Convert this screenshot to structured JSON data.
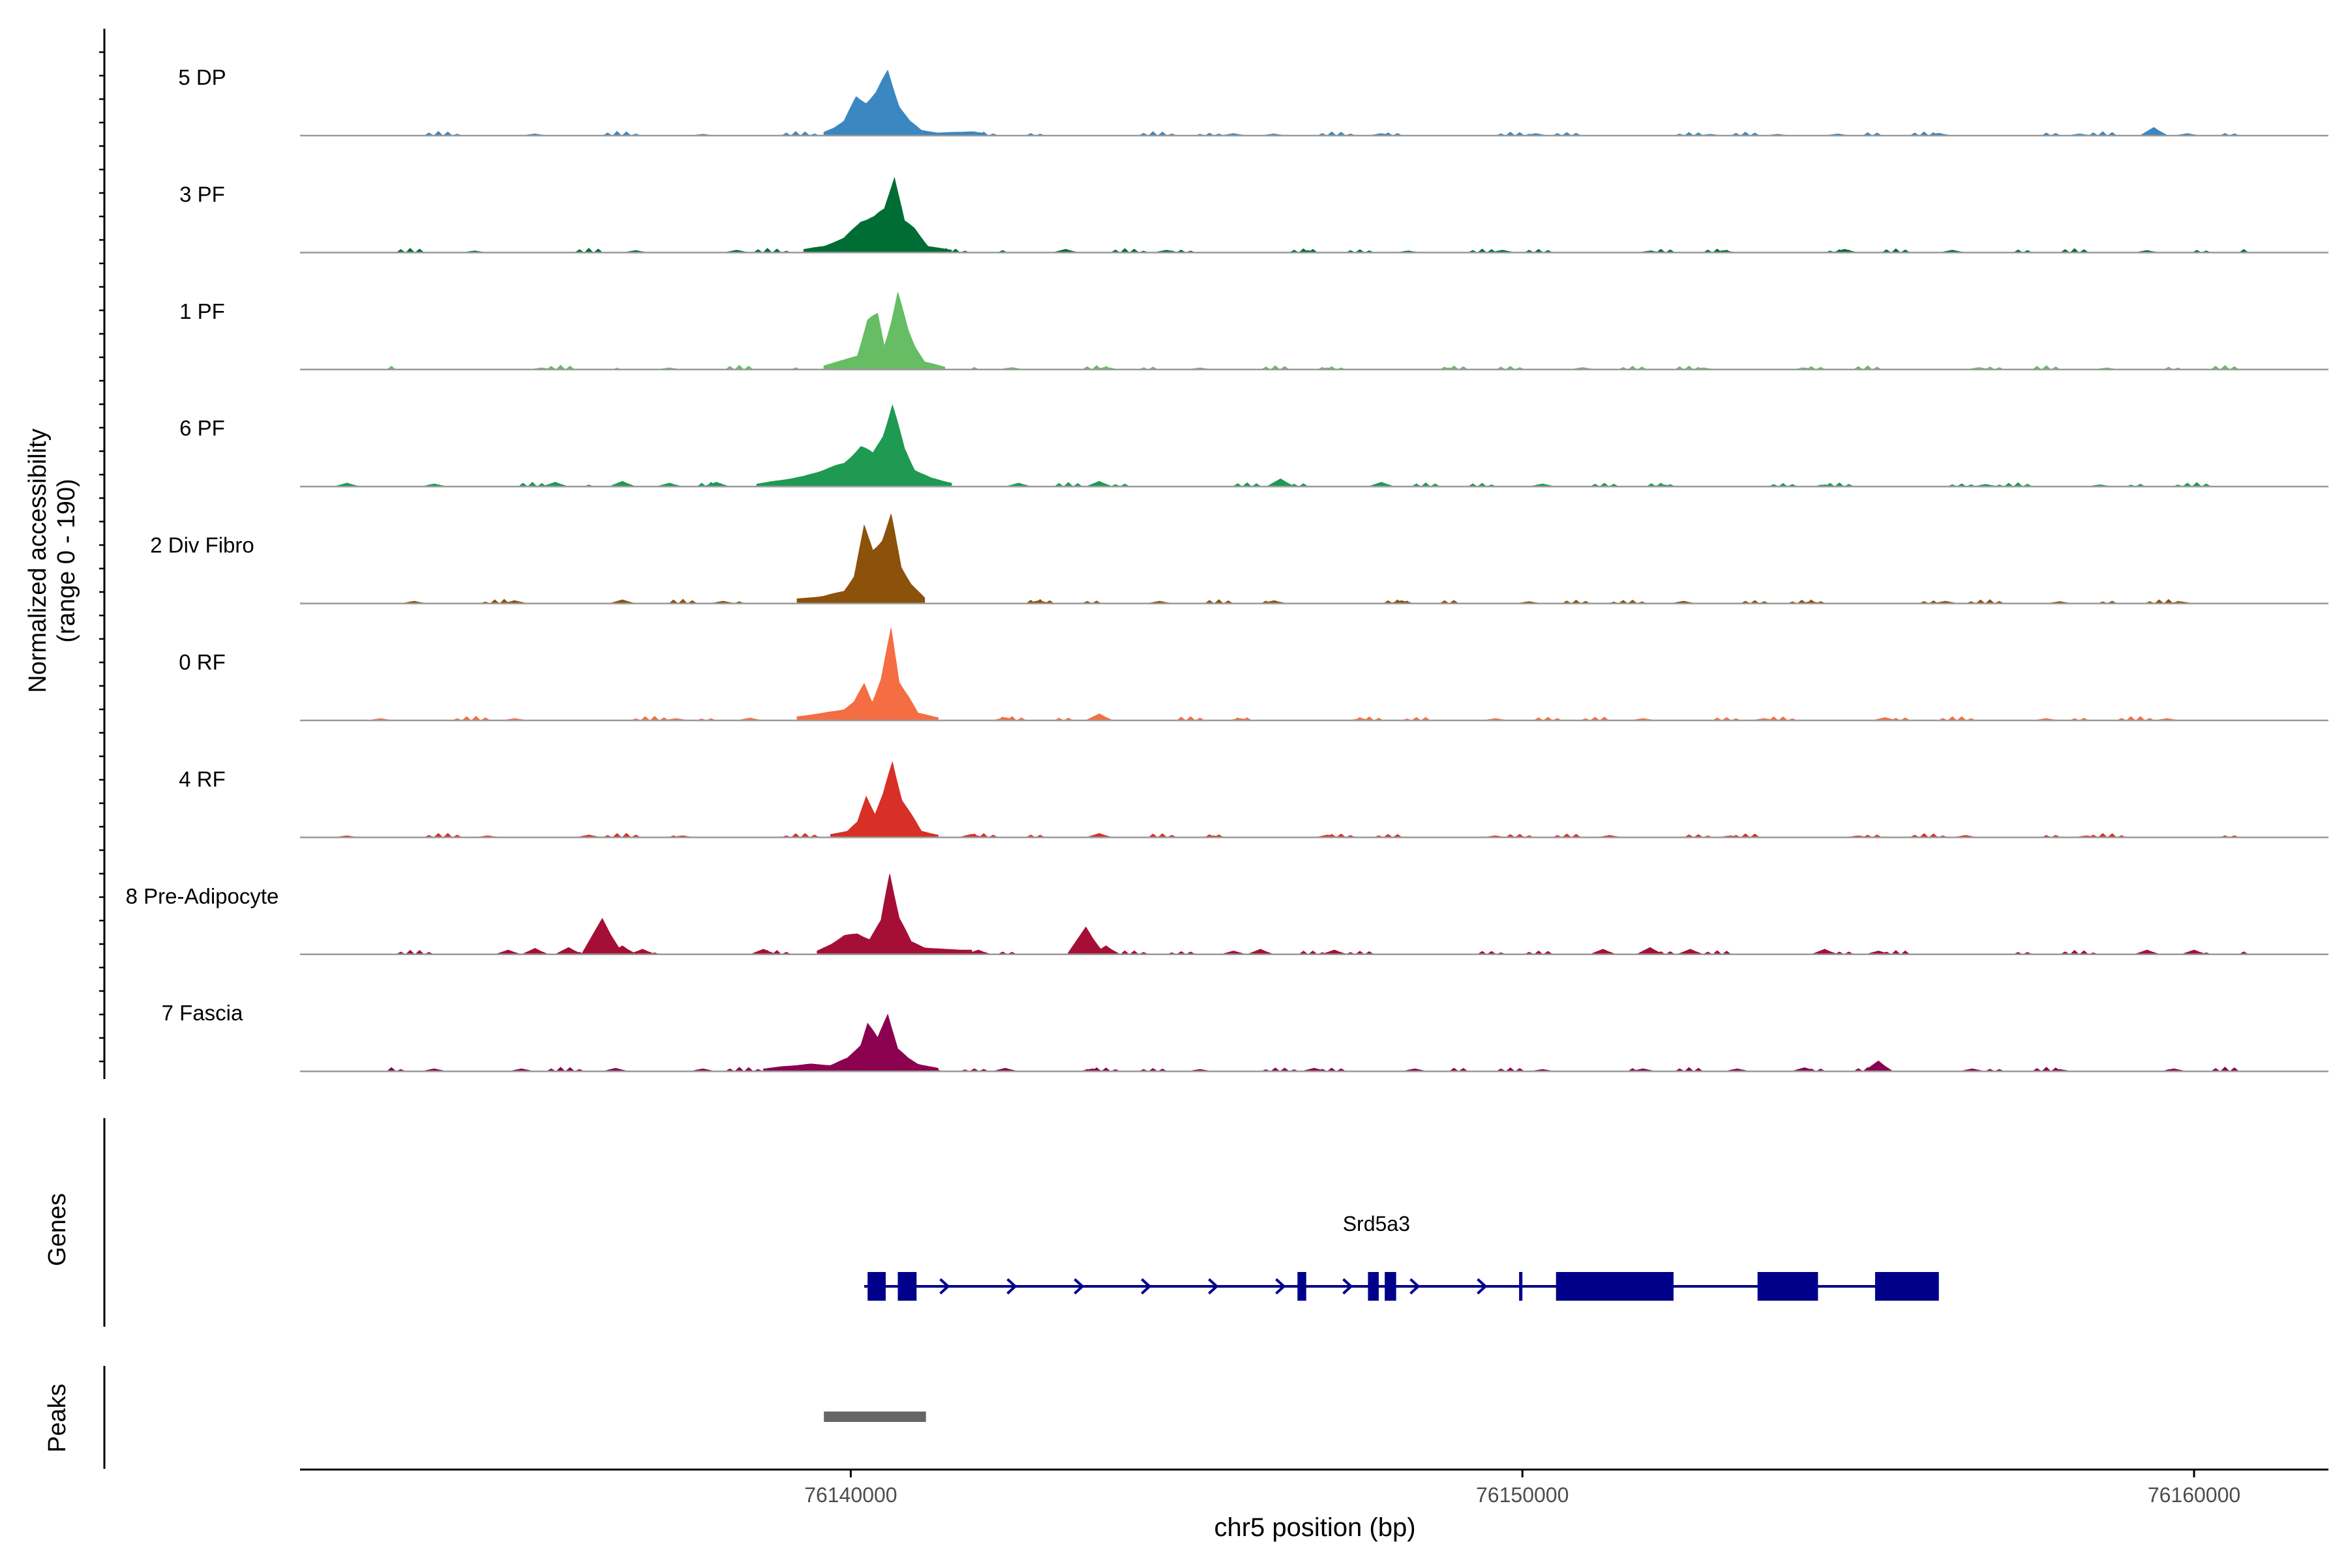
{
  "chart_data": {
    "type": "area",
    "region": {
      "chromosome": "chr5",
      "start": 76131800,
      "end": 76162000
    },
    "coverage_range": [
      0,
      190
    ],
    "y_axis_label": [
      "Normalized accessibility",
      "(range 0 - 190)"
    ],
    "x_axis_label": "chr5 position (bp)",
    "x_ticks": [
      {
        "value": 76140000,
        "label": "76140000"
      },
      {
        "value": 76150000,
        "label": "76150000"
      },
      {
        "value": 76160000,
        "label": "76160000"
      }
    ],
    "tracks": [
      {
        "name": "5 DP",
        "color": "#3a87c1",
        "peak_height": 0.62,
        "profile": [
          [
            76139600,
            0.05
          ],
          [
            76139750,
            0.12
          ],
          [
            76139900,
            0.22
          ],
          [
            76140080,
            0.58
          ],
          [
            76140230,
            0.5
          ],
          [
            76140380,
            0.66
          ],
          [
            76140550,
            0.97
          ],
          [
            76140720,
            0.45
          ],
          [
            76140880,
            0.22
          ],
          [
            76141050,
            0.08
          ],
          [
            76141300,
            0.04
          ],
          [
            76141800,
            0.06
          ],
          [
            76142000,
            0.03
          ]
        ],
        "small_bumps": [
          [
            76135300,
            0.025
          ],
          [
            76137800,
            0.02
          ],
          [
            76145700,
            0.03
          ],
          [
            76146300,
            0.025
          ],
          [
            76147900,
            0.03
          ],
          [
            76150200,
            0.03
          ],
          [
            76152800,
            0.02
          ],
          [
            76153800,
            0.02
          ],
          [
            76154700,
            0.025
          ],
          [
            76156200,
            0.035
          ],
          [
            76158300,
            0.025
          ],
          [
            76159400,
            0.12
          ],
          [
            76159900,
            0.03
          ]
        ]
      },
      {
        "name": "3 PF",
        "color": "#006d35",
        "peak_height": 0.74,
        "profile": [
          [
            76139300,
            0.04
          ],
          [
            76139600,
            0.08
          ],
          [
            76139900,
            0.18
          ],
          [
            76140150,
            0.4
          ],
          [
            76140350,
            0.45
          ],
          [
            76140500,
            0.55
          ],
          [
            76140650,
            0.98
          ],
          [
            76140800,
            0.4
          ],
          [
            76140950,
            0.3
          ],
          [
            76141150,
            0.08
          ],
          [
            76141500,
            0.03
          ]
        ],
        "small_bumps": [
          [
            76134400,
            0.02
          ],
          [
            76136800,
            0.025
          ],
          [
            76138300,
            0.03
          ],
          [
            76143200,
            0.04
          ],
          [
            76144700,
            0.03
          ],
          [
            76146800,
            0.025
          ],
          [
            76148300,
            0.02
          ],
          [
            76149700,
            0.03
          ],
          [
            76151900,
            0.02
          ],
          [
            76153000,
            0.025
          ],
          [
            76154800,
            0.04
          ],
          [
            76156400,
            0.03
          ],
          [
            76159300,
            0.025
          ]
        ]
      },
      {
        "name": "1 PF",
        "color": "#66bd63",
        "peak_height": 0.74,
        "profile": [
          [
            76139600,
            0.05
          ],
          [
            76139900,
            0.12
          ],
          [
            76140100,
            0.18
          ],
          [
            76140250,
            0.62
          ],
          [
            76140400,
            0.7
          ],
          [
            76140500,
            0.3
          ],
          [
            76140600,
            0.6
          ],
          [
            76140700,
            0.98
          ],
          [
            76140850,
            0.5
          ],
          [
            76140950,
            0.3
          ],
          [
            76141100,
            0.1
          ],
          [
            76141400,
            0.03
          ]
        ],
        "small_bumps": [
          [
            76135400,
            0.02
          ],
          [
            76137300,
            0.02
          ],
          [
            76142400,
            0.025
          ],
          [
            76143800,
            0.03
          ],
          [
            76145200,
            0.02
          ],
          [
            76147100,
            0.02
          ],
          [
            76148900,
            0.02
          ],
          [
            76150900,
            0.025
          ],
          [
            76152700,
            0.02
          ],
          [
            76154200,
            0.02
          ],
          [
            76156800,
            0.025
          ],
          [
            76158700,
            0.02
          ]
        ]
      },
      {
        "name": "6 PF",
        "color": "#1e9a52",
        "peak_height": 0.78,
        "profile": [
          [
            76138600,
            0.03
          ],
          [
            76139000,
            0.08
          ],
          [
            76139300,
            0.12
          ],
          [
            76139600,
            0.2
          ],
          [
            76139900,
            0.28
          ],
          [
            76140150,
            0.48
          ],
          [
            76140330,
            0.4
          ],
          [
            76140480,
            0.62
          ],
          [
            76140620,
            0.98
          ],
          [
            76140800,
            0.45
          ],
          [
            76140950,
            0.2
          ],
          [
            76141200,
            0.1
          ],
          [
            76141500,
            0.04
          ]
        ],
        "small_bumps": [
          [
            76132500,
            0.04
          ],
          [
            76133800,
            0.03
          ],
          [
            76135600,
            0.05
          ],
          [
            76136600,
            0.06
          ],
          [
            76137300,
            0.04
          ],
          [
            76138000,
            0.05
          ],
          [
            76142500,
            0.04
          ],
          [
            76143700,
            0.06
          ],
          [
            76146400,
            0.09
          ],
          [
            76147900,
            0.05
          ],
          [
            76150300,
            0.03
          ],
          [
            76152100,
            0.02
          ],
          [
            76154500,
            0.02
          ],
          [
            76156900,
            0.025
          ],
          [
            76158600,
            0.02
          ]
        ]
      },
      {
        "name": "2 Div Fibro",
        "color": "#8c510a",
        "peak_height": 0.84,
        "profile": [
          [
            76139200,
            0.05
          ],
          [
            76139600,
            0.08
          ],
          [
            76139900,
            0.14
          ],
          [
            76140050,
            0.3
          ],
          [
            76140200,
            0.85
          ],
          [
            76140330,
            0.6
          ],
          [
            76140470,
            0.72
          ],
          [
            76140600,
            0.98
          ],
          [
            76140750,
            0.4
          ],
          [
            76140900,
            0.22
          ],
          [
            76141100,
            0.06
          ]
        ],
        "small_bumps": [
          [
            76133500,
            0.025
          ],
          [
            76135000,
            0.03
          ],
          [
            76136600,
            0.04
          ],
          [
            76138100,
            0.025
          ],
          [
            76142800,
            0.03
          ],
          [
            76144600,
            0.025
          ],
          [
            76146300,
            0.03
          ],
          [
            76148200,
            0.03
          ],
          [
            76150100,
            0.02
          ],
          [
            76152400,
            0.025
          ],
          [
            76154300,
            0.02
          ],
          [
            76156300,
            0.025
          ],
          [
            76158000,
            0.02
          ],
          [
            76159800,
            0.02
          ]
        ]
      },
      {
        "name": "0 RF",
        "color": "#f46d43",
        "peak_height": 0.86,
        "profile": [
          [
            76139200,
            0.04
          ],
          [
            76139600,
            0.08
          ],
          [
            76139900,
            0.12
          ],
          [
            76140050,
            0.2
          ],
          [
            76140200,
            0.4
          ],
          [
            76140320,
            0.2
          ],
          [
            76140450,
            0.45
          ],
          [
            76140600,
            0.98
          ],
          [
            76140720,
            0.42
          ],
          [
            76140850,
            0.28
          ],
          [
            76141000,
            0.08
          ],
          [
            76141300,
            0.03
          ]
        ],
        "small_bumps": [
          [
            76133000,
            0.02
          ],
          [
            76135000,
            0.02
          ],
          [
            76137400,
            0.02
          ],
          [
            76138500,
            0.025
          ],
          [
            76142300,
            0.03
          ],
          [
            76143700,
            0.07
          ],
          [
            76145800,
            0.02
          ],
          [
            76147600,
            0.02
          ],
          [
            76149600,
            0.02
          ],
          [
            76151800,
            0.02
          ],
          [
            76153600,
            0.02
          ],
          [
            76155400,
            0.03
          ],
          [
            76157800,
            0.02
          ],
          [
            76159600,
            0.02
          ]
        ]
      },
      {
        "name": "4 RF",
        "color": "#d73027",
        "peak_height": 0.72,
        "profile": [
          [
            76139700,
            0.04
          ],
          [
            76139950,
            0.08
          ],
          [
            76140100,
            0.2
          ],
          [
            76140230,
            0.55
          ],
          [
            76140360,
            0.3
          ],
          [
            76140480,
            0.55
          ],
          [
            76140620,
            0.98
          ],
          [
            76140760,
            0.5
          ],
          [
            76140900,
            0.3
          ],
          [
            76141050,
            0.08
          ],
          [
            76141300,
            0.03
          ]
        ],
        "small_bumps": [
          [
            76132500,
            0.02
          ],
          [
            76134600,
            0.02
          ],
          [
            76136100,
            0.03
          ],
          [
            76137500,
            0.02
          ],
          [
            76141800,
            0.04
          ],
          [
            76143700,
            0.05
          ],
          [
            76145400,
            0.02
          ],
          [
            76147100,
            0.03
          ],
          [
            76149600,
            0.02
          ],
          [
            76151300,
            0.025
          ],
          [
            76153100,
            0.02
          ],
          [
            76155000,
            0.02
          ],
          [
            76156600,
            0.025
          ],
          [
            76158400,
            0.02
          ]
        ]
      },
      {
        "name": "8 Pre-Adipocyte",
        "color": "#a50f36",
        "peak_height": 0.78,
        "profile": [
          [
            76139500,
            0.04
          ],
          [
            76139700,
            0.12
          ],
          [
            76139900,
            0.22
          ],
          [
            76140100,
            0.25
          ],
          [
            76140280,
            0.18
          ],
          [
            76140450,
            0.4
          ],
          [
            76140580,
            0.98
          ],
          [
            76140720,
            0.45
          ],
          [
            76140900,
            0.15
          ],
          [
            76141100,
            0.08
          ],
          [
            76141400,
            0.06
          ],
          [
            76141800,
            0.05
          ]
        ],
        "small_bumps": [
          [
            76134900,
            0.05
          ],
          [
            76135300,
            0.07
          ],
          [
            76135800,
            0.08
          ],
          [
            76136300,
            0.42
          ],
          [
            76136600,
            0.1
          ],
          [
            76136900,
            0.06
          ],
          [
            76138700,
            0.06
          ],
          [
            76141900,
            0.05
          ],
          [
            76143500,
            0.32
          ],
          [
            76143800,
            0.1
          ],
          [
            76145700,
            0.04
          ],
          [
            76146100,
            0.06
          ],
          [
            76147200,
            0.05
          ],
          [
            76151200,
            0.06
          ],
          [
            76151900,
            0.08
          ],
          [
            76152500,
            0.06
          ],
          [
            76154500,
            0.06
          ],
          [
            76155300,
            0.04
          ],
          [
            76159300,
            0.05
          ],
          [
            76160000,
            0.05
          ]
        ]
      },
      {
        "name": "7 Fascia",
        "color": "#8b0150",
        "peak_height": 0.56,
        "profile": [
          [
            76138700,
            0.04
          ],
          [
            76139000,
            0.08
          ],
          [
            76139400,
            0.12
          ],
          [
            76139700,
            0.1
          ],
          [
            76139950,
            0.22
          ],
          [
            76140150,
            0.45
          ],
          [
            76140250,
            0.8
          ],
          [
            76140400,
            0.55
          ],
          [
            76140550,
            0.98
          ],
          [
            76140700,
            0.38
          ],
          [
            76140850,
            0.22
          ],
          [
            76141000,
            0.12
          ],
          [
            76141300,
            0.05
          ]
        ],
        "small_bumps": [
          [
            76133800,
            0.04
          ],
          [
            76135100,
            0.04
          ],
          [
            76136500,
            0.05
          ],
          [
            76137800,
            0.04
          ],
          [
            76142300,
            0.05
          ],
          [
            76143600,
            0.04
          ],
          [
            76145200,
            0.03
          ],
          [
            76146900,
            0.05
          ],
          [
            76148400,
            0.04
          ],
          [
            76150300,
            0.03
          ],
          [
            76151800,
            0.04
          ],
          [
            76153200,
            0.04
          ],
          [
            76154200,
            0.06
          ],
          [
            76155300,
            0.17
          ],
          [
            76156700,
            0.04
          ],
          [
            76158000,
            0.03
          ],
          [
            76159700,
            0.04
          ]
        ]
      }
    ],
    "genes": [
      {
        "name": "Srd5a3",
        "strand": "+",
        "start": 76140200,
        "end": 76155450,
        "exons": [
          [
            76140250,
            76140520
          ],
          [
            76140700,
            76140980
          ],
          [
            76146650,
            76146780
          ],
          [
            76147700,
            76147860
          ],
          [
            76147950,
            76148120
          ],
          [
            76149950,
            76150000
          ],
          [
            76150500,
            76152250
          ],
          [
            76153500,
            76154400
          ],
          [
            76155250,
            76156200
          ]
        ]
      }
    ],
    "peaks": [
      [
        76139600,
        76141120
      ]
    ],
    "panel_labels": {
      "genes": "Genes",
      "peaks": "Peaks"
    },
    "colors": {
      "gene": "#00008b",
      "peak": "#666666",
      "baseline": "#9a9a9a",
      "axis": "#000000"
    }
  }
}
